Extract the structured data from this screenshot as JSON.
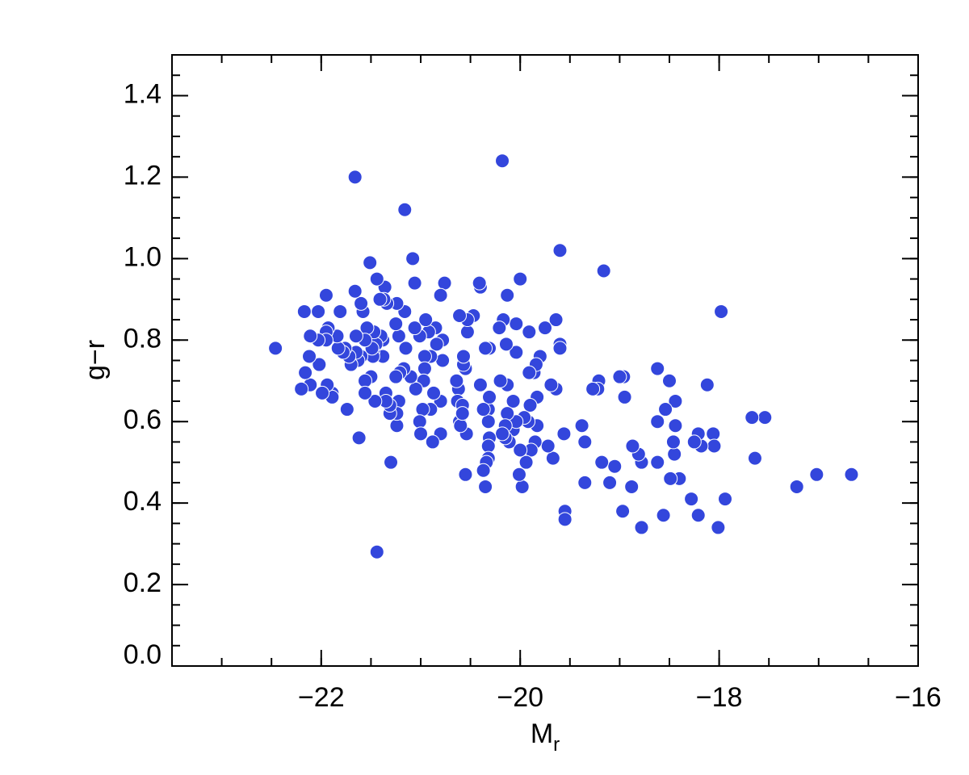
{
  "chart_data": {
    "type": "scatter",
    "x_label": "M",
    "x_label_subscript": "r",
    "y_label": "g−r",
    "xlim": [
      -23.5,
      -16
    ],
    "ylim": [
      0,
      1.5
    ],
    "xticks": [
      {
        "value": -22,
        "label": "−22"
      },
      {
        "value": -20,
        "label": "−20"
      },
      {
        "value": -18,
        "label": "−18"
      },
      {
        "value": -16,
        "label": "−16"
      }
    ],
    "yticks": [
      {
        "value": 0,
        "label": "0.0"
      },
      0.2,
      0.4,
      0.6,
      0.8,
      {
        "value": 1,
        "label": "1.0"
      },
      1.2,
      1.4
    ],
    "color": "#3346dc",
    "x": [
      -22.46,
      -21.66,
      -20.18,
      -21.16,
      -21.08,
      -21.51,
      -19.6,
      -19.16,
      -20.0,
      -17.98,
      -21.44,
      -21.62,
      -21.3,
      -16.67,
      -17.02,
      -17.22,
      -17.54,
      -17.67,
      -17.64,
      -17.94,
      -18.01,
      -18.21,
      -18.28,
      -18.12,
      -18.06,
      -18.05,
      -18.18,
      -18.21,
      -18.25,
      -18.44,
      -18.44,
      -18.45,
      -18.46,
      -18.4,
      -18.49,
      -18.5,
      -18.54,
      -18.56,
      -18.62,
      -18.62,
      -18.62,
      -18.78,
      -18.81,
      -18.78,
      -18.87,
      -18.88,
      -18.95,
      -18.97,
      -18.96,
      -19.0,
      -19.05,
      -19.18,
      -19.1,
      -19.21,
      -19.22,
      -19.27,
      -19.35,
      -19.38,
      -19.35,
      -19.55,
      -19.55,
      -19.56,
      -19.64,
      -19.67,
      -19.72,
      -19.69,
      -19.64,
      -19.6,
      -19.6,
      -19.75,
      -19.8,
      -19.86,
      -19.84,
      -19.83,
      -19.83,
      -19.85,
      -19.89,
      -19.9,
      -19.91,
      -19.91,
      -19.92,
      -19.94,
      -19.98,
      -20.01,
      -20.04,
      -20.04,
      -19.96,
      -20.0,
      -20.07,
      -20.07,
      -20.04,
      -20.14,
      -20.13,
      -20.13,
      -20.2,
      -20.17,
      -20.21,
      -20.13,
      -20.15,
      -20.11,
      -20.15,
      -20.18,
      -20.31,
      -20.35,
      -20.32,
      -20.32,
      -20.31,
      -20.31,
      -20.32,
      -20.32,
      -20.34,
      -20.35,
      -20.37,
      -20.37,
      -20.4,
      -20.4,
      -20.41,
      -20.47,
      -20.54,
      -20.55,
      -20.53,
      -20.53,
      -20.55,
      -20.57,
      -20.57,
      -20.61,
      -20.62,
      -20.64,
      -20.63,
      -20.58,
      -20.61,
      -20.6,
      -20.58,
      -20.76,
      -20.8,
      -20.78,
      -20.78,
      -20.8,
      -20.8,
      -20.84,
      -20.85,
      -20.87,
      -20.9,
      -20.88,
      -20.9,
      -20.92,
      -20.95,
      -20.96,
      -20.96,
      -20.97,
      -20.98,
      -21.01,
      -21.01,
      -21.0,
      -21.05,
      -21.06,
      -21.1,
      -21.06,
      -21.16,
      -21.15,
      -21.17,
      -21.21,
      -21.24,
      -21.22,
      -21.25,
      -21.25,
      -21.22,
      -21.24,
      -21.24,
      -21.31,
      -21.31,
      -21.34,
      -21.36,
      -21.38,
      -21.37,
      -21.38,
      -21.35,
      -21.35,
      -21.4,
      -21.41,
      -21.44,
      -21.45,
      -21.46,
      -21.47,
      -21.48,
      -21.48,
      -21.49,
      -21.5,
      -21.54,
      -21.56,
      -21.56,
      -21.56,
      -21.58,
      -21.6,
      -21.6,
      -21.63,
      -21.66,
      -21.65,
      -21.65,
      -21.7,
      -21.72,
      -21.74,
      -21.76,
      -21.78,
      -21.83,
      -21.81,
      -21.84,
      -21.89,
      -21.89,
      -21.93,
      -21.95,
      -21.94,
      -21.95,
      -21.95,
      -21.99,
      -22.02,
      -22.03,
      -22.03,
      -22.11,
      -22.11,
      -22.12,
      -22.16,
      -22.17,
      -22.2
    ],
    "y": [
      0.78,
      1.2,
      1.24,
      1.12,
      1.0,
      0.99,
      1.02,
      0.97,
      0.95,
      0.87,
      0.28,
      0.56,
      0.5,
      0.47,
      0.47,
      0.44,
      0.61,
      0.61,
      0.51,
      0.41,
      0.34,
      0.37,
      0.41,
      0.69,
      0.57,
      0.54,
      0.54,
      0.57,
      0.55,
      0.65,
      0.59,
      0.52,
      0.55,
      0.46,
      0.46,
      0.7,
      0.63,
      0.37,
      0.73,
      0.6,
      0.5,
      0.5,
      0.52,
      0.34,
      0.54,
      0.44,
      0.66,
      0.38,
      0.71,
      0.71,
      0.49,
      0.5,
      0.45,
      0.7,
      0.68,
      0.68,
      0.55,
      0.59,
      0.45,
      0.38,
      0.36,
      0.57,
      0.68,
      0.51,
      0.54,
      0.69,
      0.85,
      0.79,
      0.78,
      0.83,
      0.76,
      0.72,
      0.74,
      0.66,
      0.59,
      0.55,
      0.53,
      0.64,
      0.82,
      0.72,
      0.6,
      0.5,
      0.44,
      0.47,
      0.84,
      0.77,
      0.61,
      0.53,
      0.65,
      0.58,
      0.6,
      0.79,
      0.91,
      0.69,
      0.7,
      0.85,
      0.83,
      0.62,
      0.59,
      0.55,
      0.56,
      0.57,
      0.78,
      0.78,
      0.63,
      0.6,
      0.66,
      0.56,
      0.54,
      0.51,
      0.5,
      0.44,
      0.48,
      0.63,
      0.69,
      0.93,
      0.94,
      0.86,
      0.57,
      0.47,
      0.82,
      0.85,
      0.73,
      0.74,
      0.76,
      0.86,
      0.68,
      0.7,
      0.65,
      0.64,
      0.6,
      0.59,
      0.62,
      0.94,
      0.91,
      0.8,
      0.75,
      0.65,
      0.57,
      0.79,
      0.83,
      0.67,
      0.76,
      0.55,
      0.63,
      0.82,
      0.85,
      0.76,
      0.73,
      0.7,
      0.63,
      0.81,
      0.6,
      0.57,
      0.68,
      0.83,
      0.71,
      0.94,
      0.87,
      0.78,
      0.73,
      0.72,
      0.89,
      0.81,
      0.84,
      0.71,
      0.65,
      0.59,
      0.62,
      0.62,
      0.64,
      0.89,
      0.93,
      0.76,
      0.9,
      0.8,
      0.67,
      0.65,
      0.81,
      0.9,
      0.95,
      0.79,
      0.65,
      0.82,
      0.77,
      0.76,
      0.78,
      0.71,
      0.83,
      0.7,
      0.67,
      0.8,
      0.87,
      0.89,
      0.76,
      0.75,
      0.92,
      0.81,
      0.77,
      0.74,
      0.76,
      0.63,
      0.78,
      0.77,
      0.78,
      0.87,
      0.81,
      0.67,
      0.66,
      0.83,
      0.82,
      0.69,
      0.91,
      0.8,
      0.67,
      0.74,
      0.8,
      0.87,
      0.69,
      0.81,
      0.76,
      0.72,
      0.87,
      0.68
    ]
  }
}
